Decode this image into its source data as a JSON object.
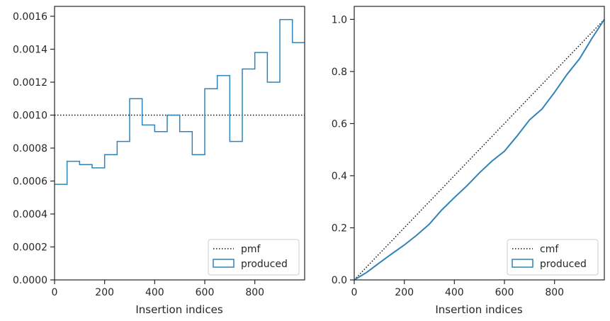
{
  "colors": {
    "series": "#2f83b8",
    "reference": "#111111",
    "axes": "#262626"
  },
  "chart_data": [
    {
      "type": "histogram-step",
      "xlabel": "Insertion indices",
      "ylabel": "",
      "xlim": [
        0,
        999
      ],
      "ylim": [
        0,
        0.00166
      ],
      "xticks": [
        0,
        200,
        400,
        600,
        800
      ],
      "xtick_labels": [
        "0",
        "200",
        "400",
        "600",
        "800"
      ],
      "yticks": [
        0,
        0.0002,
        0.0004,
        0.0006,
        0.0008,
        0.001,
        0.0012,
        0.0014,
        0.0016
      ],
      "ytick_labels": [
        "0.0000",
        "0.0002",
        "0.0004",
        "0.0006",
        "0.0008",
        "0.0010",
        "0.0012",
        "0.0014",
        "0.0016"
      ],
      "bin_edges": [
        0,
        50,
        100,
        150,
        200,
        250,
        300,
        350,
        400,
        450,
        500,
        550,
        600,
        650,
        700,
        750,
        800,
        850,
        900,
        950,
        999
      ],
      "series": [
        {
          "name": "pmf",
          "style": "dotted",
          "constant": 0.001
        },
        {
          "name": "produced",
          "style": "step",
          "values": [
            0.00058,
            0.00072,
            0.0007,
            0.00068,
            0.00076,
            0.00084,
            0.0011,
            0.00094,
            0.0009,
            0.001,
            0.0009,
            0.00076,
            0.00116,
            0.00124,
            0.00084,
            0.00128,
            0.00138,
            0.0012,
            0.00158,
            0.00144
          ]
        }
      ],
      "legend_position": "lower-right"
    },
    {
      "type": "line",
      "xlabel": "Insertion indices",
      "ylabel": "",
      "xlim": [
        0,
        999
      ],
      "ylim": [
        0,
        1.05
      ],
      "xticks": [
        0,
        200,
        400,
        600,
        800
      ],
      "xtick_labels": [
        "0",
        "200",
        "400",
        "600",
        "800"
      ],
      "yticks": [
        0,
        0.2,
        0.4,
        0.6,
        0.8,
        1.0
      ],
      "ytick_labels": [
        "0.0",
        "0.2",
        "0.4",
        "0.6",
        "0.8",
        "1.0"
      ],
      "series": [
        {
          "name": "cmf",
          "style": "dotted",
          "x": [
            0,
            999
          ],
          "y": [
            0,
            1.0
          ]
        },
        {
          "name": "produced",
          "style": "line",
          "x": [
            0,
            50,
            100,
            150,
            200,
            250,
            300,
            350,
            400,
            450,
            500,
            550,
            600,
            650,
            700,
            750,
            800,
            850,
            900,
            950,
            999
          ],
          "y": [
            0,
            0.029,
            0.065,
            0.1,
            0.134,
            0.172,
            0.214,
            0.269,
            0.316,
            0.361,
            0.411,
            0.456,
            0.494,
            0.552,
            0.614,
            0.656,
            0.72,
            0.789,
            0.849,
            0.928,
            1.0
          ]
        }
      ],
      "legend_position": "lower-right"
    }
  ]
}
